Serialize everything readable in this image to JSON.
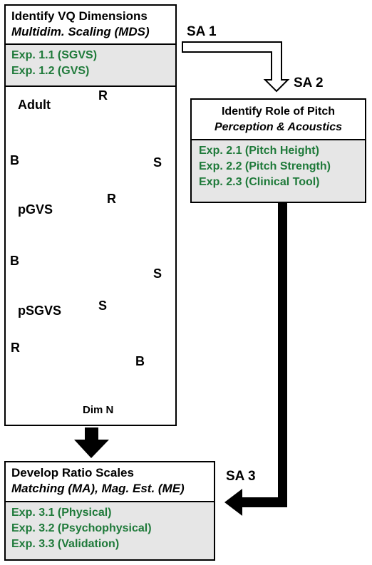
{
  "colors": {
    "green_text": "#1f7a3a",
    "box_fill": "#e6e6e6",
    "adult_line": "#22a03a",
    "pgvs_line": "#1a1acc",
    "psgvs_line": "#e01818",
    "dashed": "#8a8a8a"
  },
  "sa1": {
    "label": "SA 1",
    "title": "Identify VQ Dimensions",
    "subtitle": "Multidim. Scaling (MDS)",
    "experiments": [
      "Exp. 1.1 (SGVS)",
      "Exp. 1.2 (GVS)"
    ]
  },
  "sa2": {
    "label": "SA 2",
    "title": "Identify Role of Pitch",
    "subtitle": "Perception & Acoustics",
    "experiments": [
      "Exp. 2.1 (Pitch Height)",
      "Exp. 2.2 (Pitch Strength)",
      "Exp. 2.3 (Clinical Tool)"
    ]
  },
  "sa3": {
    "label": "SA 3",
    "title": "Develop Ratio Scales",
    "subtitle": "Matching (MA), Mag. Est. (ME)",
    "experiments": [
      "Exp. 3.1 (Physical)",
      "Exp. 3.2 (Psychophysical)",
      "Exp. 3.3 (Validation)"
    ]
  },
  "plots": {
    "adult": {
      "title": "Adult",
      "r": "R",
      "b": "B",
      "s": "S"
    },
    "pgvs": {
      "title": "pGVS",
      "r": "R",
      "b": "B",
      "s": "S"
    },
    "psgvs": {
      "title": "pSGVS",
      "s": "S",
      "r": "R",
      "b": "B",
      "dimn": "Dim N"
    }
  }
}
